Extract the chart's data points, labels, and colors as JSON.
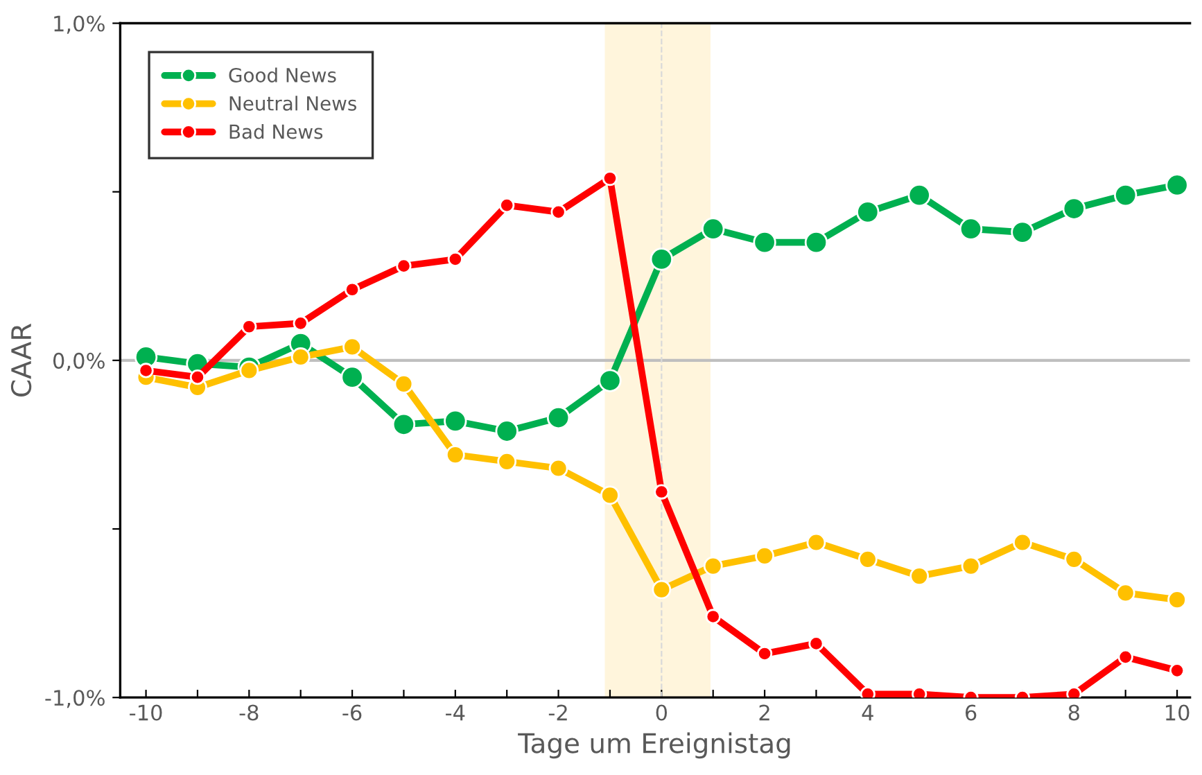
{
  "chart_data": {
    "type": "line",
    "xlabel": "Tage um Ereignistag",
    "ylabel": "CAAR",
    "x": [
      -10,
      -9,
      -8,
      -7,
      -6,
      -5,
      -4,
      -3,
      -2,
      -1,
      0,
      1,
      2,
      3,
      4,
      5,
      6,
      7,
      8,
      9,
      10
    ],
    "series": [
      {
        "name": "Good News",
        "color": "#00b050",
        "values": [
          0.01,
          -0.01,
          -0.02,
          0.05,
          -0.05,
          -0.19,
          -0.18,
          -0.21,
          -0.17,
          -0.06,
          0.3,
          0.39,
          0.35,
          0.35,
          0.44,
          0.49,
          0.39,
          0.38,
          0.45,
          0.49,
          0.52
        ]
      },
      {
        "name": "Neutral News",
        "color": "#ffc000",
        "values": [
          -0.05,
          -0.08,
          -0.03,
          0.01,
          0.04,
          -0.07,
          -0.28,
          -0.3,
          -0.32,
          -0.4,
          -0.68,
          -0.61,
          -0.58,
          -0.54,
          -0.59,
          -0.64,
          -0.61,
          -0.54,
          -0.59,
          -0.69,
          -0.71
        ]
      },
      {
        "name": "Bad News",
        "color": "#ff0000",
        "values": [
          -0.03,
          -0.05,
          0.1,
          0.11,
          0.21,
          0.28,
          0.3,
          0.46,
          0.44,
          0.54,
          -0.39,
          -0.76,
          -0.87,
          -0.84,
          -0.99,
          -0.99,
          -1.0,
          -1.0,
          -0.99,
          -0.88,
          -0.92
        ]
      }
    ],
    "xlim": [
      -10.5,
      10.25
    ],
    "xticks": [
      -10,
      {
        "value": -9,
        "label": null
      },
      -8,
      {
        "value": -7,
        "label": null
      },
      -6,
      {
        "value": -5,
        "label": null
      },
      -4,
      {
        "value": -3,
        "label": null
      },
      -2,
      {
        "value": -1,
        "label": null
      },
      0,
      {
        "value": 1,
        "label": null
      },
      2,
      {
        "value": 3,
        "label": null
      },
      4,
      {
        "value": 5,
        "label": null
      },
      6,
      {
        "value": 7,
        "label": null
      },
      8,
      {
        "value": 9,
        "label": null
      },
      10
    ],
    "ylim": [
      -1.0,
      1.0
    ],
    "yticks": [
      {
        "value": -1.0,
        "label": "-1,0%"
      },
      {
        "value": -0.5,
        "label": null
      },
      {
        "value": 0.0,
        "label": "0,0%"
      },
      {
        "value": 0.5,
        "label": null
      },
      {
        "value": 1.0,
        "label": "1,0%"
      }
    ],
    "ref_lines": [
      {
        "axis": "y",
        "value": 0,
        "color": "#bfbfbf",
        "line_style": "solid"
      },
      {
        "axis": "x",
        "value": 0,
        "color": "#d9d9d9",
        "line_style": "dashed"
      }
    ],
    "bands": [
      {
        "axis": "x",
        "from": -1.1,
        "to": 0.95,
        "color": "#fff5dc"
      }
    ],
    "grid": false,
    "legend": "top left",
    "marker": "circle",
    "line_style": "solid"
  }
}
